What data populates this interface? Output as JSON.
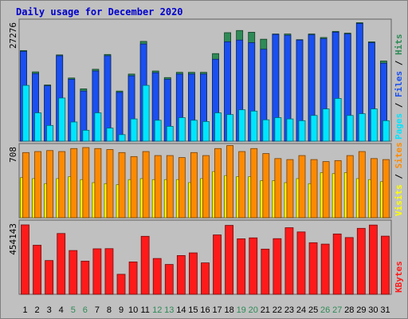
{
  "title": "Daily usage for December 2020",
  "colors": {
    "background": "#c0c0c0",
    "title": "#0000cc",
    "hits": "#2e8b57",
    "files": "#1a4ff0",
    "pages": "#00e5ff",
    "visits": "#ffff00",
    "sites": "#ff8a00",
    "kbytes": "#ff1a1a",
    "weekend_day": "#2e8b57",
    "weekday": "#000000"
  },
  "chart_data": [
    {
      "type": "bar",
      "panel": "hits-files-pages",
      "y_label": "27276",
      "legend": [
        "Hits",
        "/",
        "Files",
        "/",
        "Pages"
      ],
      "categories": [
        "1",
        "2",
        "3",
        "4",
        "5",
        "6",
        "7",
        "8",
        "9",
        "10",
        "11",
        "12",
        "13",
        "14",
        "15",
        "16",
        "17",
        "18",
        "19",
        "20",
        "21",
        "22",
        "23",
        "24",
        "25",
        "26",
        "27",
        "28",
        "29",
        "30",
        "31"
      ],
      "ylim": [
        0,
        27276
      ],
      "series": [
        {
          "name": "Hits",
          "values": [
            20800,
            15900,
            12900,
            19800,
            14500,
            12000,
            16500,
            19900,
            11500,
            15400,
            22900,
            16100,
            14600,
            15800,
            15800,
            15800,
            20100,
            24900,
            25400,
            25000,
            23400,
            24600,
            24600,
            23300,
            24600,
            23800,
            25200,
            24800,
            27200,
            22800,
            18400
          ]
        },
        {
          "name": "Files",
          "values": [
            20600,
            15500,
            12700,
            19600,
            14200,
            11500,
            16100,
            19600,
            11200,
            15000,
            22300,
            15700,
            14200,
            15400,
            15400,
            15400,
            18800,
            22800,
            23200,
            22600,
            21100,
            24500,
            24300,
            23200,
            24400,
            23500,
            25000,
            24600,
            27000,
            22600,
            17900
          ]
        },
        {
          "name": "Pages",
          "values": [
            12800,
            6500,
            3600,
            9900,
            4400,
            2500,
            6500,
            3000,
            1500,
            5100,
            12800,
            4800,
            3400,
            5400,
            4800,
            4500,
            6500,
            6100,
            7200,
            6900,
            4900,
            5400,
            5100,
            4700,
            5900,
            7400,
            9800,
            5900,
            6300,
            7400,
            4700
          ]
        }
      ]
    },
    {
      "type": "bar",
      "panel": "visits-sites",
      "y_label": "708",
      "legend": [
        "Sites",
        "/",
        "Visits"
      ],
      "categories": [
        "1",
        "2",
        "3",
        "4",
        "5",
        "6",
        "7",
        "8",
        "9",
        "10",
        "11",
        "12",
        "13",
        "14",
        "15",
        "16",
        "17",
        "18",
        "19",
        "20",
        "21",
        "22",
        "23",
        "24",
        "25",
        "26",
        "27",
        "28",
        "29",
        "30",
        "31"
      ],
      "ylim": [
        0,
        708
      ],
      "series": [
        {
          "name": "Visits",
          "values": [
            400,
            390,
            340,
            390,
            410,
            380,
            350,
            340,
            330,
            380,
            390,
            380,
            380,
            380,
            350,
            390,
            460,
            420,
            410,
            410,
            370,
            370,
            350,
            390,
            340,
            450,
            440,
            450,
            390,
            380,
            360
          ]
        },
        {
          "name": "Sites",
          "values": [
            650,
            660,
            670,
            660,
            690,
            700,
            690,
            680,
            650,
            610,
            660,
            620,
            620,
            600,
            650,
            620,
            690,
            720,
            660,
            690,
            640,
            590,
            580,
            620,
            580,
            560,
            570,
            620,
            660,
            590,
            580
          ]
        }
      ]
    },
    {
      "type": "bar",
      "panel": "kbytes",
      "y_label": "454143",
      "legend": [
        "KBytes"
      ],
      "categories": [
        "1",
        "2",
        "3",
        "4",
        "5",
        "6",
        "7",
        "8",
        "9",
        "10",
        "11",
        "12",
        "13",
        "14",
        "15",
        "16",
        "17",
        "18",
        "19",
        "20",
        "21",
        "22",
        "23",
        "24",
        "25",
        "26",
        "27",
        "28",
        "29",
        "30",
        "31"
      ],
      "ylim": [
        0,
        454143
      ],
      "series": [
        {
          "name": "KBytes",
          "values": [
            444000,
            314000,
            216000,
            389000,
            280000,
            212000,
            291000,
            292000,
            128000,
            207000,
            371000,
            229000,
            191000,
            248000,
            265000,
            201000,
            380000,
            441000,
            355000,
            361000,
            289000,
            356000,
            426000,
            399000,
            330000,
            321000,
            386000,
            363000,
            422000,
            443000,
            372000
          ]
        }
      ]
    }
  ]
}
